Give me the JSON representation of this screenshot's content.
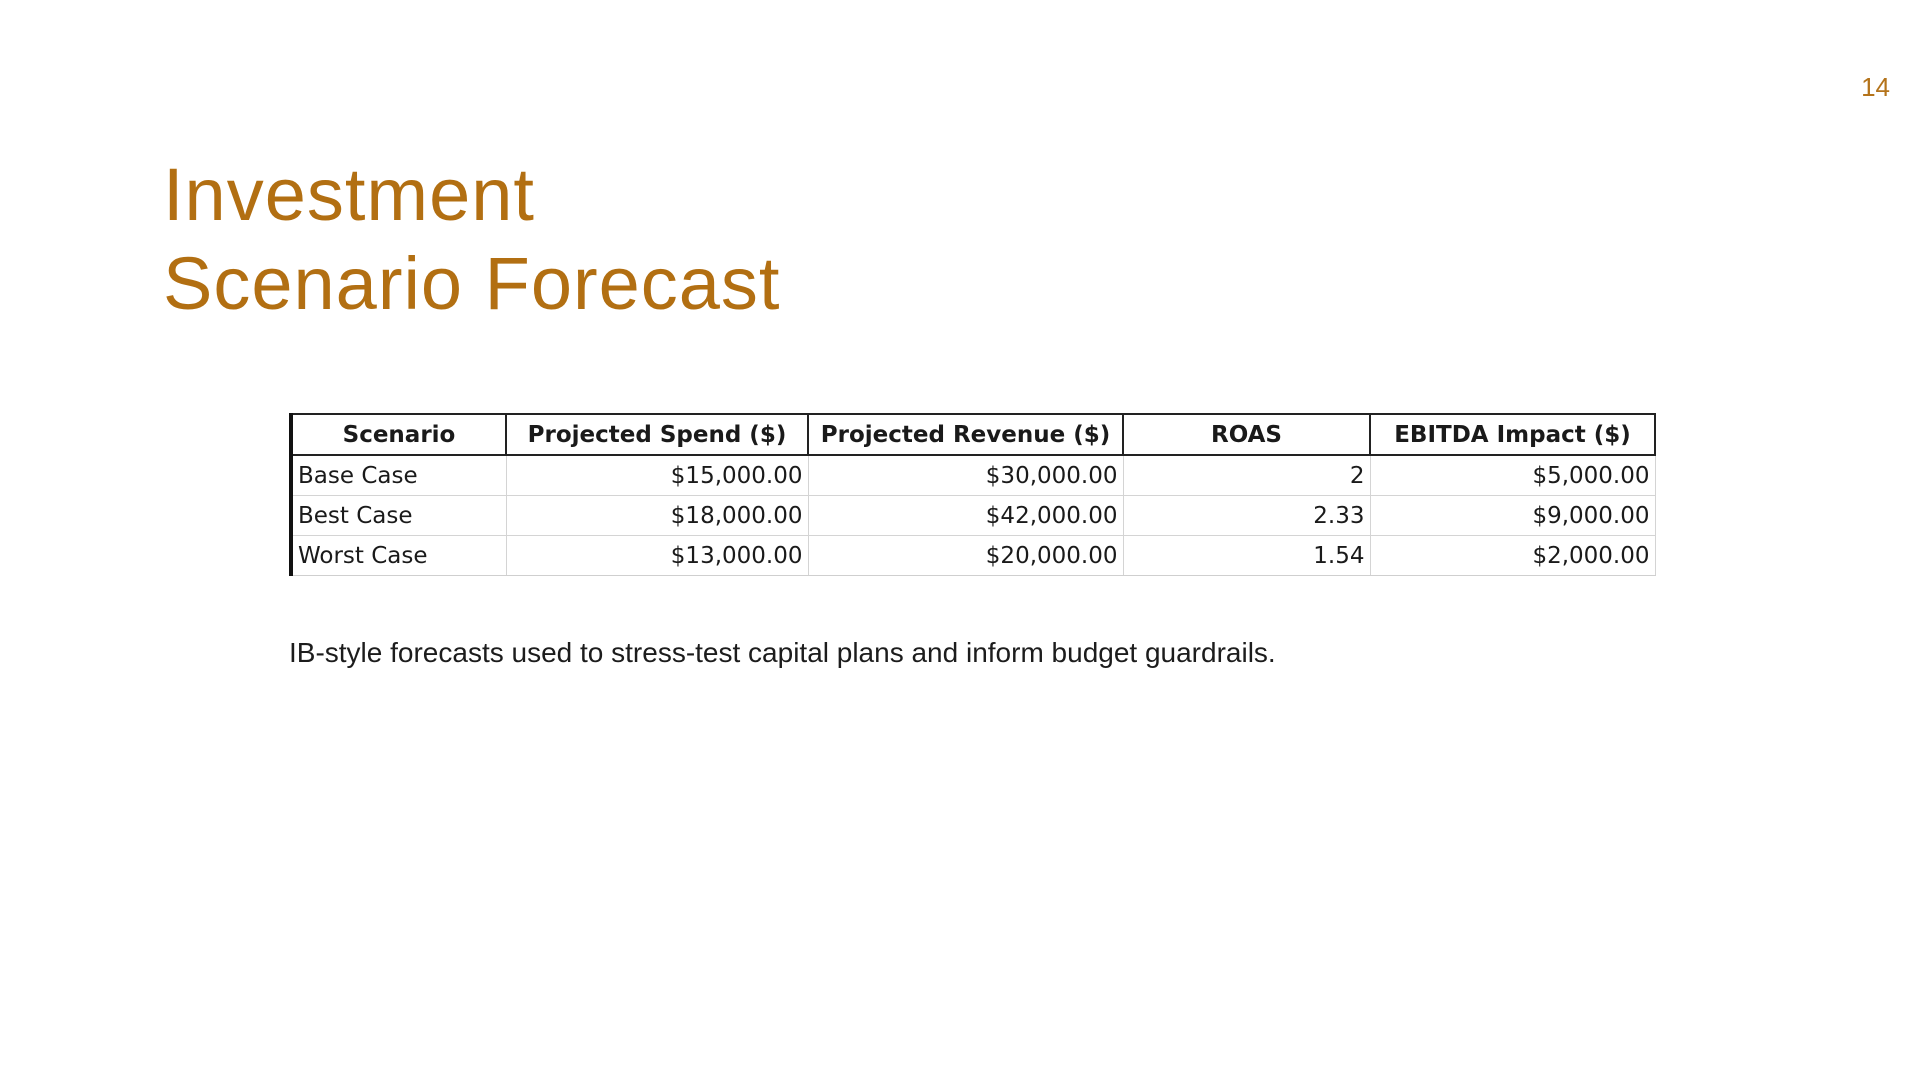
{
  "slide": {
    "page_number": "14",
    "title_line1": "Investment",
    "title_line2": "Scenario Forecast",
    "caption": "IB-style forecasts used to stress-test capital plans and inform budget guardrails."
  },
  "table": {
    "headers": [
      "Scenario",
      "Projected Spend ($)",
      "Projected Revenue ($)",
      "ROAS",
      "EBITDA Impact ($)"
    ],
    "rows": [
      [
        "Base Case",
        "$15,000.00",
        "$30,000.00",
        "2",
        "$5,000.00"
      ],
      [
        "Best Case",
        "$18,000.00",
        "$42,000.00",
        "2.33",
        "$9,000.00"
      ],
      [
        "Worst Case",
        "$13,000.00",
        "$20,000.00",
        "1.54",
        "$2,000.00"
      ]
    ]
  },
  "colors": {
    "accent": "#b26f12",
    "text": "#1c1c1c",
    "background": "#ffffff"
  }
}
